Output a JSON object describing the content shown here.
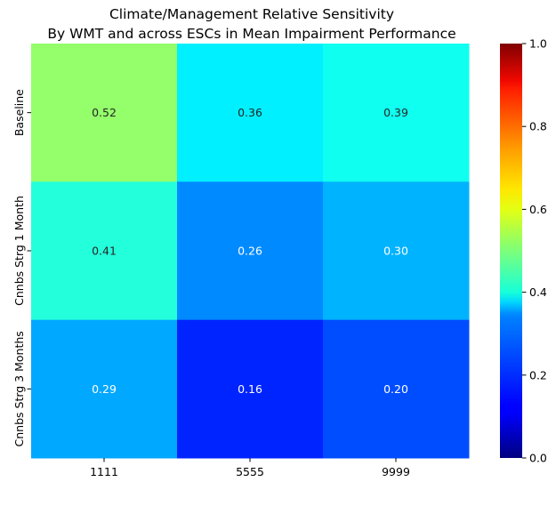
{
  "chart_data": {
    "type": "heatmap",
    "title": "Climate/Management Relative Sensitivity",
    "subtitle": "By WMT and across ESCs in Mean Impairment Performance",
    "xlabel": "",
    "ylabel": "",
    "x_categories": [
      "1111",
      "5555",
      "9999"
    ],
    "y_categories": [
      "Baseline",
      "Cnnbs Strg 1 Month",
      "Cnnbs Strg 3 Months"
    ],
    "values": [
      [
        0.52,
        0.36,
        0.39
      ],
      [
        0.41,
        0.26,
        0.3
      ],
      [
        0.29,
        0.16,
        0.2
      ]
    ],
    "value_labels": [
      [
        "0.52",
        "0.36",
        "0.39"
      ],
      [
        "0.41",
        "0.26",
        "0.30"
      ],
      [
        "0.29",
        "0.16",
        "0.20"
      ]
    ],
    "colormap": "jet",
    "colorbar": {
      "range": [
        0,
        1
      ],
      "ticks": [
        0.0,
        0.2,
        0.4,
        0.6,
        0.8,
        1.0
      ],
      "tick_labels": [
        "0.0",
        "0.2",
        "0.4",
        "0.6",
        "0.8",
        "1.0"
      ]
    },
    "grid": false,
    "legend": "colorbar-right"
  }
}
